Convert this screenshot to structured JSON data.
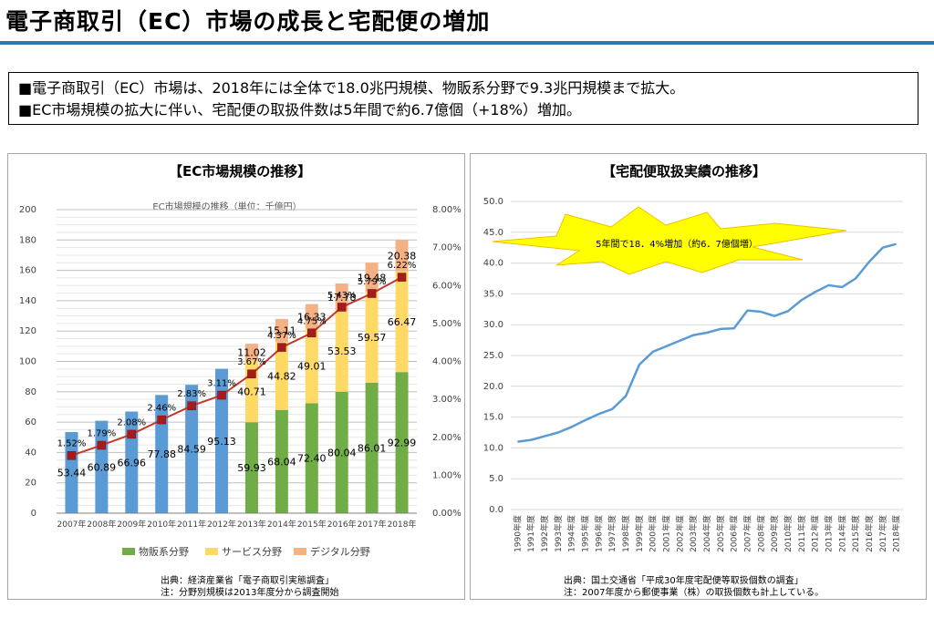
{
  "page": {
    "title": "電子商取引（EC）市場の成長と宅配便の増加",
    "summary": [
      "■電子商取引（EC）市場は、2018年には全体で18.0兆円規模、物販系分野で9.3兆円規模まで拡大。",
      "■EC市場規模の拡大に伴い、宅配便の取扱件数は5年間で約6.7億個（+18%）増加。"
    ]
  },
  "left_panel": {
    "heading": "【EC市場規模の推移】",
    "source": [
      "出典：経済産業省「電子商取引実態調査」",
      "注：分野別規模は2013年度分から調査開始"
    ]
  },
  "right_panel": {
    "heading": "【宅配便取扱実績の推移】",
    "source": [
      "出典：国土交通省「平成30年度宅配便等取扱個数の調査」",
      "注：2007年度から郵便事業（株）の取扱個数も計上している。"
    ]
  },
  "colors": {
    "accent": "#2e75b6",
    "total": "#5b9bd5",
    "goods": "#70ad47",
    "service": "#ffd966",
    "digital": "#f4b183",
    "ratio_line": "#c0392b",
    "ratio_marker": "#a61c1c",
    "callout": "#ffff00"
  },
  "chart_data": [
    {
      "type": "bar",
      "title": "EC市場規模の推移（単位：千億円）",
      "categories": [
        "2007年",
        "2008年",
        "2009年",
        "2010年",
        "2011年",
        "2012年",
        "2013年",
        "2014年",
        "2015年",
        "2016年",
        "2017年",
        "2018年"
      ],
      "total_series": {
        "values": [
          53.44,
          60.89,
          66.96,
          77.88,
          84.59,
          95.13
        ]
      },
      "series": [
        {
          "name": "物販系分野",
          "values": [
            null,
            null,
            null,
            null,
            null,
            null,
            59.93,
            68.04,
            72.4,
            80.04,
            86.01,
            92.99
          ]
        },
        {
          "name": "サービス分野",
          "values": [
            null,
            null,
            null,
            null,
            null,
            null,
            40.71,
            44.82,
            49.01,
            53.53,
            59.57,
            66.47
          ]
        },
        {
          "name": "デジタル分野",
          "values": [
            null,
            null,
            null,
            null,
            null,
            null,
            11.02,
            15.11,
            16.33,
            17.78,
            19.48,
            20.38
          ]
        }
      ],
      "line_series": {
        "axis": "right",
        "values": [
          1.52,
          1.79,
          2.08,
          2.46,
          2.83,
          3.11,
          3.67,
          4.37,
          4.75,
          5.43,
          5.79,
          6.22
        ],
        "labels": [
          "1.52%",
          "1.79%",
          "2.08%",
          "2.46%",
          "2.83%",
          "3.11%",
          "3.67%",
          "4.37%",
          "4.75%",
          "5.43%",
          "5.79%",
          "6.22%"
        ]
      },
      "value_labels": {
        "total": [
          "53.44",
          "60.89",
          "66.96",
          "77.88",
          "84.59",
          "95.13"
        ],
        "goods": [
          "59.93",
          "68.04",
          "72.40",
          "80.04",
          "86.01",
          "92.99"
        ],
        "service": [
          "40.71",
          "44.82",
          "49.01",
          "53.53",
          "59.57",
          "66.47"
        ],
        "digital": [
          "11.02",
          "15.11",
          "16.33",
          "17.78",
          "19.48",
          "20.38"
        ]
      },
      "ylim": [
        0,
        200
      ],
      "y_ticks": [
        "0",
        "20",
        "40",
        "60",
        "80",
        "100",
        "120",
        "140",
        "160",
        "180",
        "200"
      ],
      "y2lim": [
        0,
        8
      ],
      "y2_ticks": [
        "0.00%",
        "1.00%",
        "2.00%",
        "3.00%",
        "4.00%",
        "5.00%",
        "6.00%",
        "7.00%",
        "8.00%"
      ],
      "grid": true,
      "legend": "bottom"
    },
    {
      "type": "line",
      "x": [
        "1990年度",
        "1991年度",
        "1992年度",
        "1993年度",
        "1994年度",
        "1995年度",
        "1996年度",
        "1997年度",
        "1998年度",
        "1999年度",
        "2000年度",
        "2001年度",
        "2002年度",
        "2003年度",
        "2004年度",
        "2005年度",
        "2006年度",
        "2007年度",
        "2008年度",
        "2009年度",
        "2010年度",
        "2011年度",
        "2012年度",
        "2013年度",
        "2014年度",
        "2015年度",
        "2016年度",
        "2017年度",
        "2018年度"
      ],
      "values": [
        11.0,
        11.3,
        11.9,
        12.5,
        13.4,
        14.5,
        15.5,
        16.3,
        18.4,
        23.5,
        25.6,
        26.5,
        27.4,
        28.3,
        28.7,
        29.3,
        29.4,
        32.3,
        32.1,
        31.4,
        32.2,
        34.0,
        35.3,
        36.4,
        36.1,
        37.5,
        40.2,
        42.5,
        43.1
      ],
      "ylim": [
        0,
        50
      ],
      "y_ticks": [
        "0.0",
        "5.0",
        "10.0",
        "15.0",
        "20.0",
        "25.0",
        "30.0",
        "35.0",
        "40.0",
        "45.0",
        "50.0"
      ],
      "grid": true,
      "annotation": "5年間で18．4%増加（約6．7億個増）"
    }
  ]
}
